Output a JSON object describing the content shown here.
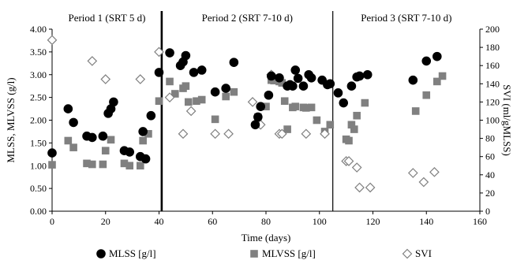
{
  "chart_data": {
    "type": "scatter",
    "xlabel": "Time (days)",
    "ylabel_left": "MLSS, MLVSS  (g/l)",
    "ylabel_right": "SVI  (ml/gMLSS)",
    "xlim": [
      0,
      160
    ],
    "ylim_left": [
      0,
      4
    ],
    "ylim_right": [
      0,
      200
    ],
    "x_ticks": [
      "0",
      "20",
      "40",
      "60",
      "80",
      "100",
      "120",
      "140",
      "160"
    ],
    "y_ticks_left": [
      "0.00",
      "0.50",
      "1.00",
      "1.50",
      "2.00",
      "2.50",
      "3.00",
      "3.50",
      "4.00"
    ],
    "y_ticks_right": [
      "0",
      "20",
      "40",
      "60",
      "80",
      "100",
      "120",
      "140",
      "160",
      "180",
      "200"
    ],
    "grid": false,
    "legend_position": "bottom",
    "periods": [
      {
        "label": "Period 1 (SRT 5 d)",
        "x_start": 0,
        "x_end": 41
      },
      {
        "label": "Period 2 (SRT 7-10 d)",
        "x_start": 41,
        "x_end": 105
      },
      {
        "label": "Period 3 (SRT 7-10 d)",
        "x_start": 105,
        "x_end": 160
      }
    ],
    "period_dividers": [
      {
        "x": 41,
        "style": "thick"
      },
      {
        "x": 105,
        "style": "thin"
      }
    ],
    "series": [
      {
        "name": "MLSS [g/l]",
        "axis": "left",
        "marker": "circle",
        "color": "#000000",
        "x": [
          0,
          6,
          8,
          13,
          15,
          19,
          21,
          22,
          23,
          27,
          29,
          33,
          34,
          35,
          37,
          40,
          44,
          48,
          49,
          50,
          53,
          56,
          61,
          65,
          68,
          76,
          77,
          78,
          81,
          82,
          85,
          88,
          89,
          90,
          91,
          92,
          94,
          96,
          97,
          101,
          103,
          104,
          107,
          109,
          112,
          114,
          115,
          118,
          135,
          140,
          144
        ],
        "y": [
          1.28,
          2.25,
          1.95,
          1.65,
          1.62,
          1.65,
          2.15,
          2.25,
          2.4,
          1.33,
          1.3,
          1.2,
          1.75,
          1.15,
          2.1,
          3.05,
          3.48,
          3.2,
          3.28,
          3.42,
          3.05,
          3.1,
          2.62,
          2.7,
          3.27,
          1.9,
          2.07,
          2.3,
          2.55,
          2.97,
          2.93,
          2.75,
          2.78,
          2.75,
          3.1,
          2.92,
          2.75,
          3.0,
          2.93,
          2.88,
          2.78,
          2.8,
          2.6,
          2.38,
          2.75,
          2.95,
          2.97,
          3.0,
          2.88,
          3.3,
          3.4
        ]
      },
      {
        "name": "MLVSS [g/l]",
        "axis": "left",
        "marker": "square",
        "color": "#808080",
        "x": [
          0,
          6,
          8,
          13,
          15,
          19,
          20,
          22,
          27,
          29,
          33,
          34,
          36,
          40,
          44,
          46,
          49,
          50,
          51,
          54,
          56,
          61,
          65,
          68,
          77,
          80,
          82,
          83,
          85,
          86,
          87,
          88,
          90,
          91,
          94,
          95,
          97,
          99,
          102,
          104,
          110,
          111,
          112,
          113,
          114,
          117,
          136,
          140,
          144,
          146
        ],
        "y": [
          1.02,
          1.55,
          1.4,
          1.05,
          1.03,
          1.03,
          1.33,
          1.57,
          1.05,
          1.0,
          1.0,
          1.55,
          1.7,
          2.42,
          2.85,
          2.58,
          2.7,
          2.75,
          2.4,
          2.42,
          2.45,
          2.02,
          2.52,
          2.62,
          2.07,
          2.3,
          2.88,
          2.87,
          2.85,
          2.82,
          2.42,
          1.8,
          2.28,
          2.3,
          2.28,
          2.27,
          2.28,
          2.0,
          1.75,
          1.9,
          1.58,
          1.55,
          1.9,
          1.8,
          2.1,
          2.38,
          2.2,
          2.55,
          2.85,
          2.97
        ]
      },
      {
        "name": "SVI",
        "axis": "right",
        "marker": "diamond-open",
        "color": "#808080",
        "x": [
          0,
          15,
          20,
          33,
          40,
          44,
          49,
          52,
          61,
          66,
          75,
          78,
          82,
          85,
          86,
          95,
          102,
          110,
          111,
          114,
          115,
          119,
          135,
          139,
          143
        ],
        "y": [
          188,
          165,
          145,
          145,
          175,
          125,
          85,
          110,
          85,
          85,
          120,
          95,
          150,
          85,
          85,
          85,
          85,
          55,
          55,
          48,
          26,
          26,
          42,
          32,
          43
        ]
      }
    ]
  }
}
